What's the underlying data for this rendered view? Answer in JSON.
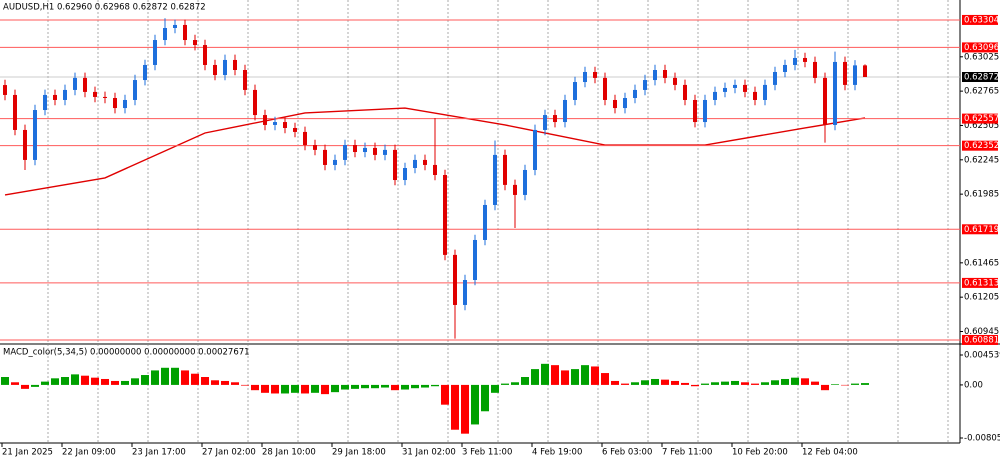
{
  "chart_data": {
    "type": "candlestick",
    "title": "AUDUSD,H1  0.62960 0.62968 0.62872 0.62872",
    "indicator_title": "MACD_color(5,34,5) 0.00000000 0.00000000 0.00027671",
    "open": [
      0.62811,
      0.62736,
      0.62471,
      0.62244,
      0.62622,
      0.62736,
      0.62698,
      0.62774,
      0.62865,
      0.62759,
      0.62721,
      0.62713,
      0.62637,
      0.62698,
      0.62849,
      0.62963,
      0.63152,
      0.63243,
      0.63266,
      0.63152,
      0.63114,
      0.62963,
      0.62887,
      0.63001,
      0.62925,
      0.62774,
      0.62584,
      0.62509,
      0.62531,
      0.62486,
      0.62456,
      0.62357,
      0.6232,
      0.62206,
      0.62244,
      0.62357,
      0.62304,
      0.62335,
      0.62282,
      0.6232,
      0.62092,
      0.62183,
      0.62244,
      0.62206,
      0.6213,
      0.61525,
      0.61146,
      0.61335,
      0.61638,
      0.61903,
      0.62282,
      0.62055,
      0.61979,
      0.62168,
      0.62471,
      0.62584,
      0.62531,
      0.62698,
      0.62834,
      0.6291,
      0.62865,
      0.62698,
      0.62637,
      0.62713,
      0.62774,
      0.62849,
      0.62925,
      0.62865,
      0.62812,
      0.62698,
      0.62531,
      0.62698,
      0.62759,
      0.62789,
      0.62812,
      0.62759,
      0.62698,
      0.62812,
      0.6291,
      0.62963,
      0.63016,
      0.62986,
      0.62865,
      0.62509,
      0.62986,
      0.62812,
      0.6296
    ],
    "high": [
      0.62851,
      0.62776,
      0.62511,
      0.62662,
      0.62776,
      0.62776,
      0.62814,
      0.62905,
      0.62905,
      0.62799,
      0.62761,
      0.62753,
      0.62738,
      0.62889,
      0.63003,
      0.63192,
      0.63317,
      0.63306,
      0.63306,
      0.63192,
      0.63154,
      0.63003,
      0.63041,
      0.63041,
      0.62965,
      0.62814,
      0.62624,
      0.62571,
      0.62571,
      0.62526,
      0.62496,
      0.62397,
      0.6236,
      0.62284,
      0.62397,
      0.62397,
      0.62375,
      0.62375,
      0.6236,
      0.6236,
      0.62223,
      0.62284,
      0.62284,
      0.62562,
      0.6217,
      0.61565,
      0.61375,
      0.61678,
      0.61943,
      0.62391,
      0.62322,
      0.62095,
      0.62208,
      0.62511,
      0.62624,
      0.62624,
      0.62738,
      0.62874,
      0.6295,
      0.6295,
      0.62905,
      0.62738,
      0.62753,
      0.62814,
      0.62889,
      0.62965,
      0.62965,
      0.62905,
      0.62852,
      0.62738,
      0.62738,
      0.62799,
      0.62829,
      0.62852,
      0.62852,
      0.62799,
      0.62852,
      0.6295,
      0.63003,
      0.63077,
      0.63056,
      0.63026,
      0.62905,
      0.63064,
      0.63026,
      0.63,
      0.62968
    ],
    "low": [
      0.62696,
      0.62431,
      0.62168,
      0.62204,
      0.62582,
      0.62658,
      0.62658,
      0.62734,
      0.62719,
      0.62681,
      0.62673,
      0.62597,
      0.62597,
      0.62658,
      0.62809,
      0.62923,
      0.63112,
      0.63203,
      0.63112,
      0.63074,
      0.62923,
      0.62847,
      0.62847,
      0.62885,
      0.62734,
      0.62544,
      0.62469,
      0.62469,
      0.62446,
      0.62416,
      0.62317,
      0.6228,
      0.62166,
      0.62166,
      0.62204,
      0.62264,
      0.62264,
      0.62242,
      0.62242,
      0.62052,
      0.62052,
      0.62143,
      0.62166,
      0.6209,
      0.61485,
      0.60891,
      0.61106,
      0.61295,
      0.61598,
      0.61863,
      0.62015,
      0.61729,
      0.61939,
      0.62128,
      0.62431,
      0.62491,
      0.62491,
      0.62658,
      0.62794,
      0.62825,
      0.62658,
      0.62597,
      0.62597,
      0.62673,
      0.62734,
      0.62809,
      0.62825,
      0.62772,
      0.62658,
      0.62491,
      0.62491,
      0.62658,
      0.62719,
      0.62749,
      0.62719,
      0.62658,
      0.62658,
      0.62772,
      0.6287,
      0.62923,
      0.62946,
      0.62825,
      0.62375,
      0.62469,
      0.62772,
      0.62772,
      0.62872
    ],
    "close": [
      0.62736,
      0.62471,
      0.62244,
      0.62622,
      0.62736,
      0.62698,
      0.62774,
      0.62865,
      0.62759,
      0.62721,
      0.62713,
      0.62637,
      0.62698,
      0.62849,
      0.62963,
      0.63152,
      0.63243,
      0.63266,
      0.63152,
      0.63114,
      0.62963,
      0.62887,
      0.63001,
      0.62925,
      0.62774,
      0.62584,
      0.62509,
      0.62531,
      0.62486,
      0.62456,
      0.62357,
      0.6232,
      0.62206,
      0.62244,
      0.62357,
      0.62304,
      0.62335,
      0.62282,
      0.6232,
      0.62092,
      0.62183,
      0.62244,
      0.62206,
      0.6213,
      0.61525,
      0.61146,
      0.61335,
      0.61638,
      0.61903,
      0.62282,
      0.62055,
      0.61979,
      0.62168,
      0.62471,
      0.62584,
      0.62531,
      0.62698,
      0.62834,
      0.6291,
      0.62865,
      0.62698,
      0.62637,
      0.62713,
      0.62774,
      0.62849,
      0.62925,
      0.62865,
      0.62812,
      0.62698,
      0.62531,
      0.62698,
      0.62759,
      0.62789,
      0.62812,
      0.62759,
      0.62698,
      0.62812,
      0.6291,
      0.62963,
      0.63016,
      0.62986,
      0.62865,
      0.62509,
      0.62986,
      0.62812,
      0.6296,
      0.62872
    ],
    "up_color": "#1e6fdc",
    "down_color": "#e00000",
    "ylim": [
      0.60858,
      0.63455
    ],
    "yticks": [
      0.63025,
      0.62765,
      0.62505,
      0.62245,
      0.61985,
      0.61465,
      0.61205,
      0.60945
    ],
    "levels": [
      0.63304,
      0.63096,
      0.62557,
      0.62352,
      0.61719,
      0.61313,
      0.60881
    ],
    "level_color": "#ff5a5a",
    "current_price": 0.62872,
    "ma": {
      "x": [
        0,
        10,
        20,
        30,
        40,
        50,
        60,
        70,
        80,
        86
      ],
      "values": [
        0.61979,
        0.62108,
        0.62448,
        0.626,
        0.62637,
        0.62509,
        0.62357,
        0.62357,
        0.62486,
        0.62562
      ],
      "color": "#e00000"
    },
    "macd": {
      "values": [
        0.0012,
        0.0004,
        -0.0006,
        -0.0003,
        0.0005,
        0.001,
        0.0012,
        0.0016,
        0.0014,
        0.0011,
        0.0009,
        0.0006,
        0.0006,
        0.001,
        0.0015,
        0.0022,
        0.0026,
        0.0026,
        0.0022,
        0.0017,
        0.0012,
        0.0007,
        0.0006,
        0.0004,
        -0.0001,
        -0.0008,
        -0.0012,
        -0.0013,
        -0.0013,
        -0.0012,
        -0.0013,
        -0.0012,
        -0.0014,
        -0.0011,
        -0.0007,
        -0.0006,
        -0.0005,
        -0.0005,
        -0.0004,
        -0.0008,
        -0.0007,
        -0.0005,
        -0.0004,
        -0.0002,
        -0.003,
        -0.0068,
        -0.0074,
        -0.006,
        -0.004,
        -0.0012,
        0.0002,
        0.0004,
        0.0012,
        0.0024,
        0.0032,
        0.003,
        0.0022,
        0.0024,
        0.003,
        0.0028,
        0.0018,
        0.0006,
        0.0002,
        0.0004,
        0.0007,
        0.0009,
        0.0008,
        0.0006,
        0.0003,
        -0.0002,
        0.0002,
        0.0004,
        0.0005,
        0.0006,
        0.0004,
        0.0002,
        0.0004,
        0.0007,
        0.0009,
        0.0011,
        0.001,
        0.0005,
        -0.0008,
        0.0001,
        0,
        0.0002,
        0.00027671
      ],
      "ylim": [
        -0.0085117,
        0.0059054
      ],
      "yticks": [
        0.0045392,
        {
          "value": 0,
          "label": "0.00"
        },
        -0.0080563
      ],
      "up_color": "#00a000",
      "down_color": "#ff0000"
    },
    "xticks": [
      {
        "value": 0,
        "label": "21 Jan 2025"
      },
      {
        "value": 6,
        "label": "22 Jan 09:00"
      },
      {
        "value": 13,
        "label": "23 Jan 17:00"
      },
      {
        "value": 20,
        "label": "27 Jan 02:00"
      },
      {
        "value": 26,
        "label": "28 Jan 10:00"
      },
      {
        "value": 33,
        "label": "29 Jan 18:00"
      },
      {
        "value": 40,
        "label": "31 Jan 02:00"
      },
      {
        "value": 46,
        "label": "3 Feb 11:00"
      },
      {
        "value": 53,
        "label": "4 Feb 19:00"
      },
      {
        "value": 60,
        "label": "6 Feb 03:00"
      },
      {
        "value": 66,
        "label": "7 Feb 11:00"
      },
      {
        "value": 73,
        "label": "10 Feb 20:00"
      },
      {
        "value": 80,
        "label": "12 Feb 04:00"
      }
    ],
    "grid": true
  }
}
